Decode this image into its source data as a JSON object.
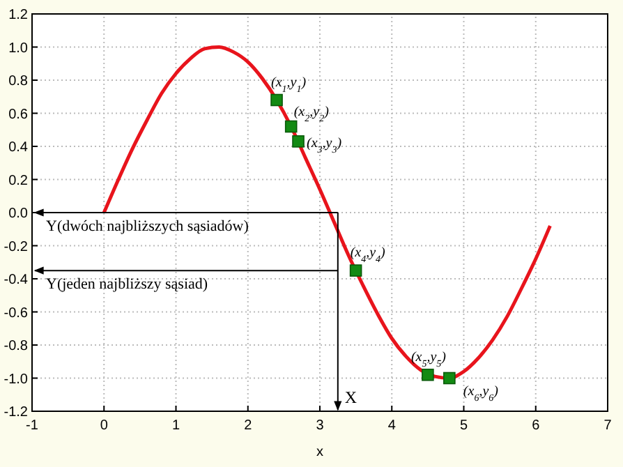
{
  "chart_data": {
    "type": "line",
    "xlabel": "x",
    "xlim": [
      -1,
      7
    ],
    "xticks": [
      -1,
      0,
      1,
      2,
      3,
      4,
      5,
      6,
      7
    ],
    "ylim": [
      -1.2,
      1.2
    ],
    "yticks": [
      {
        "value": -1.2,
        "label": "-1.2"
      },
      {
        "value": -1,
        "label": "-1.0"
      },
      {
        "value": -0.8,
        "label": "-0.8"
      },
      {
        "value": -0.6,
        "label": "-0.6"
      },
      {
        "value": -0.4,
        "label": "-0.4"
      },
      {
        "value": -0.2,
        "label": "-0.2"
      },
      {
        "value": 0,
        "label": "0.0"
      },
      {
        "value": 0.2,
        "label": "0.2"
      },
      {
        "value": 0.4,
        "label": "0.4"
      },
      {
        "value": 0.6,
        "label": "0.6"
      },
      {
        "value": 0.8,
        "label": "0.8"
      },
      {
        "value": 1,
        "label": "1.0"
      },
      {
        "value": 1.2,
        "label": "1.2"
      }
    ],
    "grid": true,
    "series": [
      {
        "color": "#e8141c",
        "x": [
          0,
          0.2,
          0.4,
          0.6,
          0.8,
          1.0,
          1.2,
          1.4,
          1.6,
          1.8,
          2.0,
          2.2,
          2.4,
          2.6,
          2.8,
          3.0,
          3.2,
          3.4,
          3.6,
          3.8,
          4.0,
          4.2,
          4.4,
          4.6,
          4.8,
          5.0,
          5.2,
          5.4,
          5.6,
          5.8,
          6.0,
          6.2
        ],
        "values": [
          0,
          0.2,
          0.39,
          0.56,
          0.72,
          0.84,
          0.93,
          0.99,
          1.0,
          0.97,
          0.91,
          0.81,
          0.68,
          0.52,
          0.33,
          0.14,
          -0.06,
          -0.26,
          -0.44,
          -0.61,
          -0.76,
          -0.87,
          -0.95,
          -0.99,
          -1.0,
          -0.96,
          -0.88,
          -0.77,
          -0.63,
          -0.46,
          -0.28,
          -0.08
        ]
      },
      {
        "type": "scatter",
        "color": "#138a13",
        "marker": "square",
        "x": [
          2.4,
          2.6,
          2.7,
          3.5,
          4.5,
          4.8
        ],
        "values": [
          0.68,
          0.52,
          0.43,
          -0.35,
          -0.98,
          -1.0
        ]
      }
    ],
    "ref_lines": [
      {
        "axis": "y",
        "value": 0,
        "label": "Y(dwóch najbliższych sąsiadów)"
      },
      {
        "axis": "y",
        "value": -0.35,
        "label": "Y(jeden najbliższy sąsiad)"
      },
      {
        "axis": "x",
        "value": 3.25,
        "label": "X"
      }
    ],
    "annotations": [
      {
        "text": "(x$_{1}$,y$_{1}$)",
        "x": 2.4,
        "y": 0.68
      },
      {
        "text": "(x$_{2}$,y$_{2}$)",
        "x": 2.6,
        "y": 0.52
      },
      {
        "text": "(x$_{3}$,y$_{3}$)",
        "x": 2.7,
        "y": 0.43
      },
      {
        "text": "(x$_{4}$,y$_{4}$)",
        "x": 3.5,
        "y": -0.35
      },
      {
        "text": "(x$_{5}$,y$_{5}$)",
        "x": 4.5,
        "y": -0.98
      },
      {
        "text": "(x$_{6}$,y$_{6}$)",
        "x": 4.8,
        "y": -1.0
      }
    ]
  }
}
